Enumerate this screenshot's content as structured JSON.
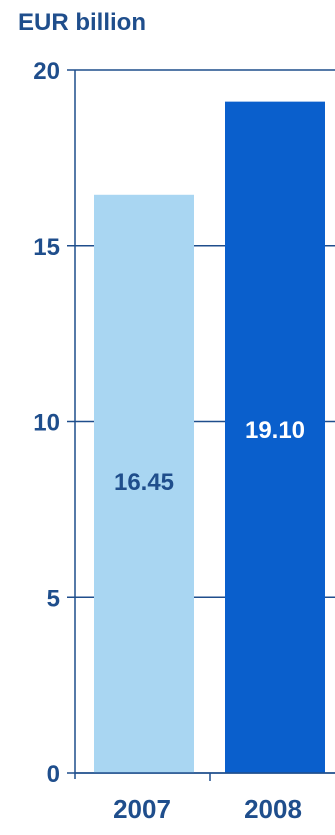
{
  "chart_data": {
    "type": "bar",
    "ylabel": "EUR billion",
    "categories": [
      "2007",
      "2008"
    ],
    "values": [
      16.45,
      19.1
    ],
    "value_labels": [
      "16.45",
      "19.10"
    ],
    "yticks": [
      0,
      5,
      10,
      15,
      20
    ],
    "ylim": [
      0,
      20
    ],
    "grid": "horizontal",
    "colors": {
      "bar_2007": "#a9d6f2",
      "bar_2008": "#0a5fcc",
      "text": "#1f4e8c",
      "label_on_dark": "#ffffff",
      "axis": "#1f4e8c"
    }
  }
}
